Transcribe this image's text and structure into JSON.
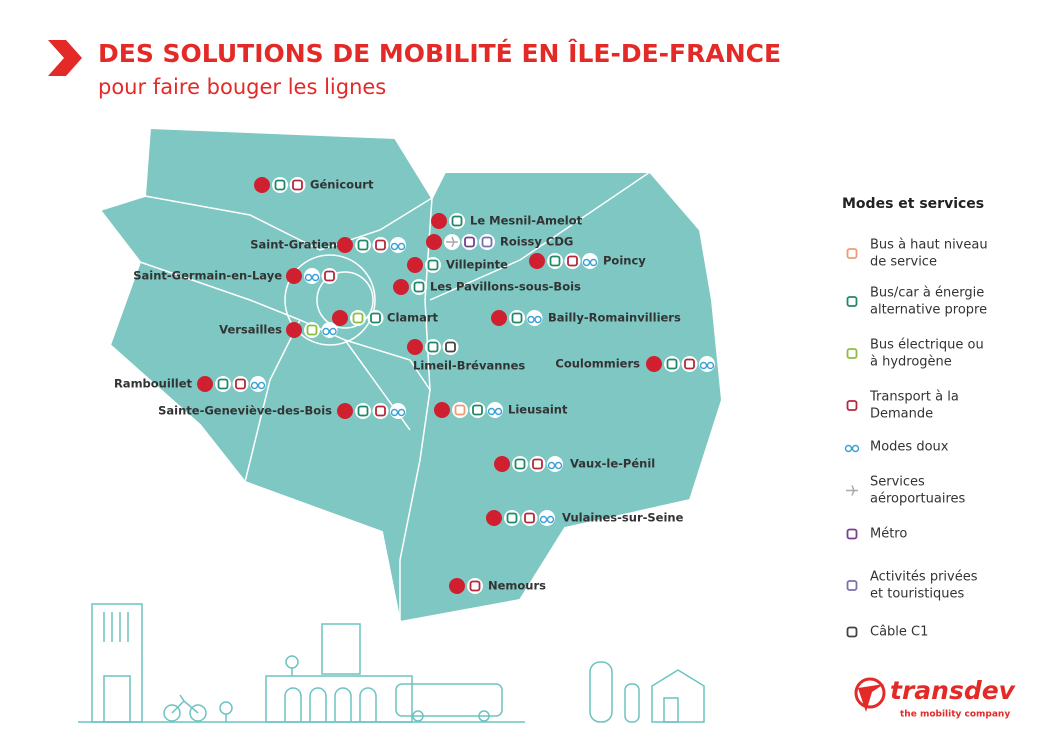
{
  "header": {
    "title": "DES SOLUTIONS DE MOBILITÉ EN ÎLE-DE-FRANCE",
    "subtitle": "pour faire bouger les lignes"
  },
  "map": {
    "cities": [
      "Génicourt",
      "Le Mesnil-Amelot",
      "Saint-Gratien",
      "Roissy CDG",
      "Villepinte",
      "Poincy",
      "Saint-Germain-en-Laye",
      "Les Pavillons-sous-Bois",
      "Clamart",
      "Bailly-Romainvilliers",
      "Versailles",
      "Limeil-Brévannes",
      "Coulommiers",
      "Rambouillet",
      "Sainte-Geneviève-des-Bois",
      "Lieusaint",
      "Vaux-le-Pénil",
      "Vulaines-sur-Seine",
      "Nemours"
    ]
  },
  "legend": {
    "title": "Modes et services",
    "items": [
      {
        "label": [
          "Bus à haut niveau",
          "de service"
        ]
      },
      {
        "label": [
          "Bus/car à énergie",
          "alternative propre"
        ]
      },
      {
        "label": [
          "Bus électrique ou",
          "à hydrogène"
        ]
      },
      {
        "label": [
          "Transport à la",
          "Demande"
        ]
      },
      {
        "label": [
          "Modes doux"
        ]
      },
      {
        "label": [
          "Services",
          "aéroportuaires"
        ]
      },
      {
        "label": [
          "Métro"
        ]
      },
      {
        "label": [
          "Activités privées",
          "et touristiques"
        ]
      },
      {
        "label": [
          "Câble C1"
        ]
      }
    ]
  },
  "logo": {
    "name": "transdev",
    "tagline": "the mobility company"
  }
}
